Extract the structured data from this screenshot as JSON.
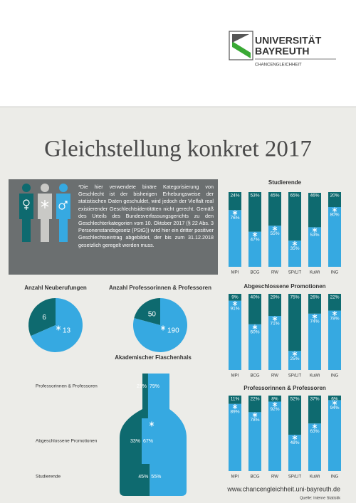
{
  "header": {
    "university_line1": "UNIVERSITÄT",
    "university_line2": "BAYREUTH",
    "unit": "CHANCENGLEICHHEIT"
  },
  "title": "Gleichstellung konkret 2017",
  "note": "*Die hier verwendete binäre Kategorisierung von Geschlecht ist der bisherigen Erhebungsweise der statistischen Daten geschuldet, wird jedoch der Vielfalt real existierender Geschlechtsidentitäten nicht gerecht. Gemäß des Urteils des Bundesverfassungsgerichts zu den Geschlechterkategorien vom 10. Oktober 2017 (§ 22 Abs. 3 Personenstandsgesetz (PStG)) wird hier ein dritter positiver Geschlechtseintrag abgebildet, der bis zum 31.12.2018 gesetzlich geregelt werden muss.",
  "chart_data": [
    {
      "type": "stacked_bar",
      "title": "Studierende",
      "categories": [
        "MPI",
        "BCG",
        "RW",
        "SP/LIT",
        "KuWi",
        "ING"
      ],
      "ylim": [
        0,
        100
      ],
      "series": [
        {
          "color": "#36a9e1",
          "values": [
            76,
            47,
            55,
            35,
            53,
            80
          ],
          "value_labels": [
            "76%",
            "47%",
            "55%",
            "35%",
            "53%",
            "80%"
          ]
        },
        {
          "color": "#0e6a6f",
          "values": [
            24,
            53,
            45,
            65,
            46,
            20
          ],
          "value_labels": [
            "24%",
            "53%",
            "45%",
            "65%",
            "46%",
            "20%"
          ]
        }
      ]
    },
    {
      "type": "stacked_bar",
      "title": "Abgeschlossene Promotionen",
      "categories": [
        "MPI",
        "BCG",
        "RW",
        "SP/LIT",
        "KuWi",
        "ING"
      ],
      "ylim": [
        0,
        100
      ],
      "series": [
        {
          "color": "#36a9e1",
          "values": [
            91,
            60,
            71,
            25,
            74,
            78
          ],
          "value_labels": [
            "91%",
            "60%",
            "71%",
            "25%",
            "74%",
            "78%"
          ]
        },
        {
          "color": "#0e6a6f",
          "values": [
            9,
            40,
            29,
            75,
            26,
            22
          ],
          "value_labels": [
            "9%",
            "40%",
            "29%",
            "75%",
            "26%",
            "22%"
          ]
        }
      ]
    },
    {
      "type": "stacked_bar",
      "title": "Professorinnen & Professoren",
      "categories": [
        "MPI",
        "BCG",
        "RW",
        "SP/LIT",
        "KuWi",
        "ING"
      ],
      "ylim": [
        0,
        100
      ],
      "series": [
        {
          "color": "#36a9e1",
          "values": [
            89,
            78,
            92,
            48,
            63,
            94
          ],
          "value_labels": [
            "89%",
            "78%",
            "92%",
            "48%",
            "63%",
            "94%"
          ]
        },
        {
          "color": "#0e6a6f",
          "values": [
            11,
            22,
            8,
            52,
            37,
            6
          ],
          "value_labels": [
            "11%",
            "22%",
            "8%",
            "52%",
            "37%",
            "6%"
          ]
        }
      ]
    },
    {
      "type": "pie",
      "title": "Anzahl Neuberufungen",
      "values": [
        6,
        13
      ],
      "colors": [
        "#0e6a6f",
        "#36a9e1"
      ]
    },
    {
      "type": "pie",
      "title": "Anzahl Professorinnen & Professoren",
      "values": [
        50,
        190
      ],
      "colors": [
        "#0e6a6f",
        "#36a9e1"
      ]
    },
    {
      "type": "bottleneck",
      "title": "Akademischer Flaschenhals",
      "categories": [
        "Professorinnen & Professoren",
        "Abgeschlossene Promotionen",
        "Studierende"
      ],
      "series": [
        {
          "color": "#0e6a6f",
          "values": [
            21,
            33,
            45
          ],
          "value_labels": [
            "21%",
            "33%",
            "45%"
          ]
        },
        {
          "color": "#36a9e1",
          "values": [
            79,
            67,
            55
          ],
          "value_labels": [
            "79%",
            "67%",
            "55%"
          ]
        }
      ]
    }
  ],
  "footer": {
    "url": "www.chancengleichheit.uni-bayreuth.de",
    "source": "Quelle: Interne Statistik"
  }
}
